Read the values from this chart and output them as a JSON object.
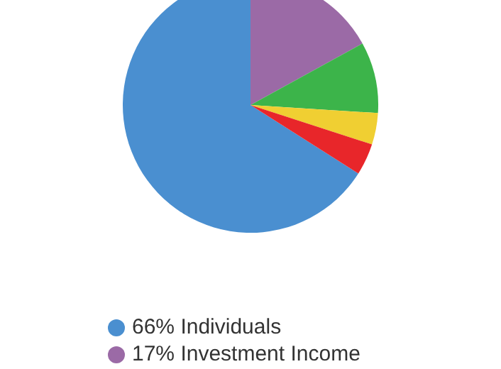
{
  "chart_data": {
    "type": "pie",
    "categories": [
      "Individuals",
      "Investment Income",
      null,
      null,
      null
    ],
    "values": [
      66,
      17,
      9,
      4,
      4
    ],
    "value_labels": [
      "66%",
      "17%",
      null,
      null,
      null
    ],
    "colors": [
      "#4a8fd0",
      "#9b6aa6",
      "#3cb44a",
      "#f0cf32",
      "#e8262a"
    ],
    "legend": "bottom"
  }
}
